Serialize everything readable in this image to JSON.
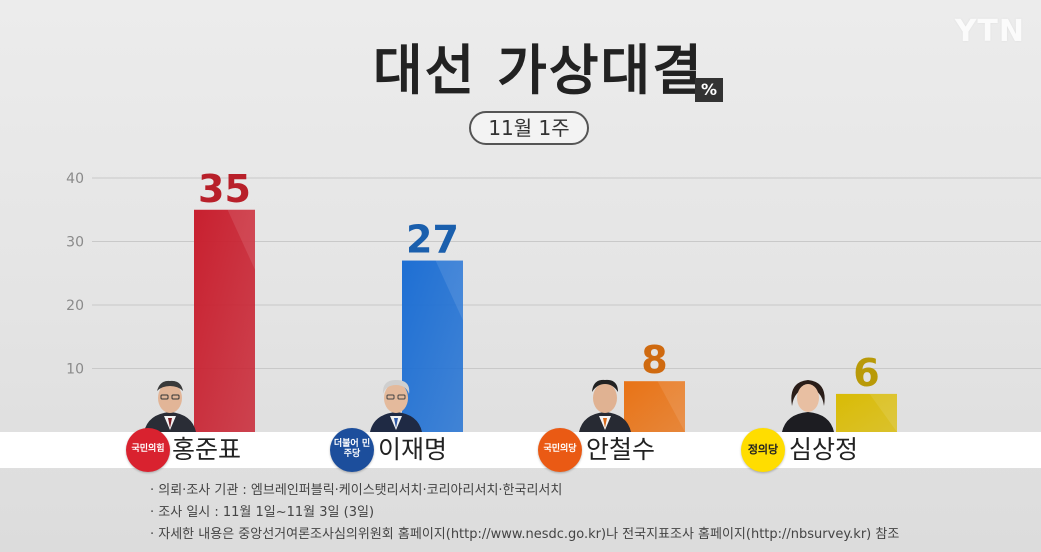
{
  "logo": "YTN",
  "title": "대선 가상대결",
  "unit": "%",
  "date_badge": "11월 1주",
  "chart_data": {
    "type": "bar",
    "title": "대선 가상대결",
    "subtitle": "11월 1주",
    "unit": "%",
    "ylim": [
      0,
      40
    ],
    "yticks": [
      "10",
      "20",
      "30",
      "40"
    ],
    "grid": true,
    "categories": [
      "홍준표",
      "이재명",
      "안철수",
      "심상정"
    ],
    "values": [
      35,
      27,
      8,
      6
    ],
    "value_labels": [
      "35",
      "27",
      "8",
      "6"
    ],
    "colors": [
      "#c8202f",
      "#1e6fd3",
      "#e87316",
      "#d9bb05"
    ],
    "label_colors": [
      "#b8202a",
      "#1a5fad",
      "#cf6a10",
      "#b99a08"
    ]
  },
  "candidates": [
    {
      "name": "홍준표",
      "party": "국민의힘",
      "party_color": "#d9222f"
    },
    {
      "name": "이재명",
      "party": "더불어 민주당",
      "party_color": "#1c4e9c"
    },
    {
      "name": "안철수",
      "party": "국민의당",
      "party_color": "#ea5a14"
    },
    {
      "name": "심상정",
      "party": "정의당",
      "party_color": "#ffdd00"
    }
  ],
  "notes": [
    "의뢰·조사 기관 : 엠브레인퍼블릭·케이스탯리서치·코리아리서치·한국리서치",
    "조사 일시 : 11월 1일~11월 3일 (3일)",
    "자세한 내용은 중앙선거여론조사심의위원회 홈페이지(http://www.nesdc.go.kr)나 전국지표조사 홈페이지(http://nbsurvey.kr) 참조"
  ]
}
